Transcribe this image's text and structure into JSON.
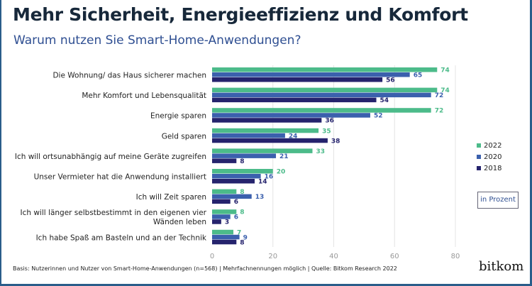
{
  "title": "Mehr Sicherheit, Energieeffizienz und Komfort",
  "subtitle": "Warum nutzen Sie Smart-Home-Anwendungen?",
  "unit_note": "in Prozent",
  "footnote": "Basis: Nutzerinnen und Nutzer von Smart-Home-Anwendungen (n=568) | Mehrfachnennungen möglich | Quelle: Bitkom Research 2022",
  "logo": "bitkom",
  "chart_data": {
    "type": "bar",
    "orientation": "horizontal",
    "categories": [
      [
        "Die Wohnung/ das Haus sicherer machen"
      ],
      [
        "Mehr Komfort und Lebensqualität"
      ],
      [
        "Energie sparen"
      ],
      [
        "Geld sparen"
      ],
      [
        "Ich will ortsunabhängig auf meine Geräte zugreifen"
      ],
      [
        "Unser Vermieter hat die Anwendung installiert"
      ],
      [
        "Ich will Zeit sparen"
      ],
      [
        "Ich will länger selbstbestimmt in den eigenen vier",
        "Wänden leben"
      ],
      [
        "Ich habe Spaß am Basteln und an der Technik"
      ]
    ],
    "series": [
      {
        "name": "2022",
        "color": "#4cbb8a",
        "values": [
          74,
          74,
          72,
          35,
          33,
          20,
          8,
          8,
          7
        ]
      },
      {
        "name": "2020",
        "color": "#3b60ad",
        "values": [
          65,
          72,
          52,
          24,
          21,
          16,
          13,
          6,
          9
        ]
      },
      {
        "name": "2018",
        "color": "#25236d",
        "values": [
          56,
          54,
          36,
          38,
          8,
          14,
          6,
          3,
          8
        ]
      }
    ],
    "xlim": [
      0,
      80
    ],
    "xticks": [
      0,
      20,
      40,
      60,
      80
    ],
    "grid": true,
    "legend": "right"
  }
}
